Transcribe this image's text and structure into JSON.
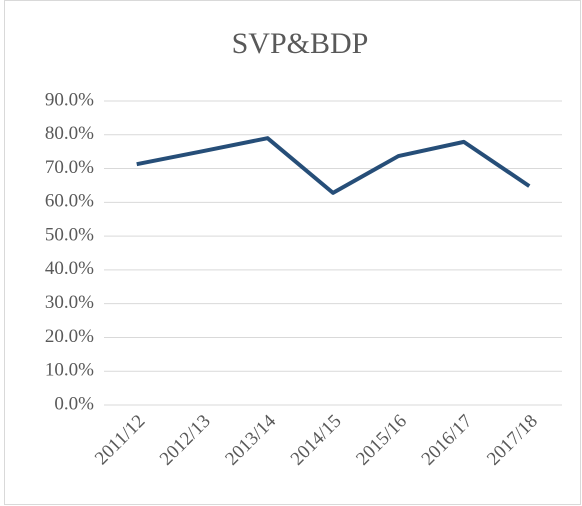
{
  "chart_data": {
    "type": "line",
    "title": "SVP&BDP",
    "categories": [
      "2011/12",
      "2012/13",
      "2013/14",
      "2014/15",
      "2015/16",
      "2016/17",
      "2017/18"
    ],
    "series": [
      {
        "name": "SVP&BDP",
        "color": "#264e78",
        "values": [
          71.3,
          75.1,
          79.0,
          62.8,
          73.7,
          77.9,
          64.8
        ]
      }
    ],
    "ylim": [
      0,
      90
    ],
    "yticks": [
      {
        "value": 0,
        "label": "0.0%"
      },
      {
        "value": 10,
        "label": "10.0%"
      },
      {
        "value": 20,
        "label": "20.0%"
      },
      {
        "value": 30,
        "label": "30.0%"
      },
      {
        "value": 40,
        "label": "40.0%"
      },
      {
        "value": 50,
        "label": "50.0%"
      },
      {
        "value": 60,
        "label": "60.0%"
      },
      {
        "value": 70,
        "label": "70.0%"
      },
      {
        "value": 80,
        "label": "80.0%"
      },
      {
        "value": 90,
        "label": "90.0%"
      }
    ],
    "grid": true,
    "legend": false
  }
}
